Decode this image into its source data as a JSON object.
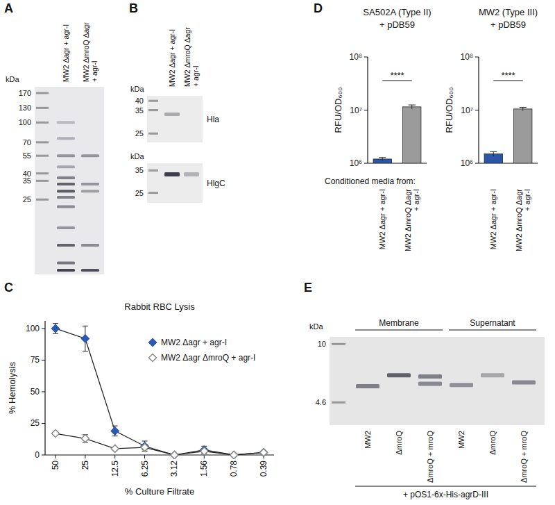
{
  "panel_labels": [
    "A",
    "B",
    "C",
    "D",
    "E"
  ],
  "gels": [
    {
      "unit": "kDa",
      "markers": [
        170,
        130,
        100,
        70,
        55,
        40,
        35,
        25
      ],
      "ylim": [
        6.5,
        190
      ],
      "lane_labels": [
        "MW2 Δagr + agr-I",
        "MW2 ΔmroQ Δagr + agr-I"
      ],
      "lanes": [
        [
          {
            "kda": 100,
            "intensity": 0.25
          },
          {
            "kda": 75,
            "intensity": 0.3
          },
          {
            "kda": 55,
            "intensity": 0.45
          },
          {
            "kda": 45,
            "intensity": 0.35
          },
          {
            "kda": 37,
            "intensity": 0.55
          },
          {
            "kda": 33,
            "intensity": 0.7
          },
          {
            "kda": 29,
            "intensity": 0.75
          },
          {
            "kda": 26,
            "intensity": 0.55
          },
          {
            "kda": 22,
            "intensity": 0.5
          },
          {
            "kda": 15,
            "intensity": 0.45
          },
          {
            "kda": 11,
            "intensity": 0.7
          },
          {
            "kda": 8,
            "intensity": 0.6
          },
          {
            "kda": 7,
            "intensity": 0.85
          }
        ],
        [
          {
            "kda": 55,
            "intensity": 0.45
          },
          {
            "kda": 33,
            "intensity": 0.45
          },
          {
            "kda": 29,
            "intensity": 0.4
          },
          {
            "kda": 11,
            "intensity": 0.5
          },
          {
            "kda": 7,
            "intensity": 0.8
          }
        ]
      ]
    },
    {
      "unit": "kDa",
      "label": "Hla",
      "markers": [
        40,
        35,
        25
      ],
      "ylim": [
        22,
        43
      ],
      "lane_labels": [
        "MW2 Δagr + agr-I",
        "MW2 ΔmroQ Δagr + agr-I"
      ],
      "lanes": [
        [
          {
            "kda": 33,
            "intensity": 0.35
          }
        ],
        []
      ]
    },
    {
      "unit": "kDa",
      "label": "HlgC",
      "markers": [
        35,
        25
      ],
      "ylim": [
        21.5,
        39
      ],
      "lanes": [
        [
          {
            "kda": 33,
            "intensity": 0.9
          }
        ],
        [
          {
            "kda": 33,
            "intensity": 0.3
          }
        ]
      ]
    },
    {
      "unit": "kDa",
      "markers": [
        10,
        4.6
      ],
      "ylim": [
        3.4,
        11
      ],
      "group_labels": [
        "Membrane",
        "Supernatant"
      ],
      "lane_labels": [
        "MW2",
        "ΔmroQ",
        "ΔmroQ + mroQ",
        "MW2",
        "ΔmroQ",
        "ΔmroQ + mroQ"
      ],
      "footer": "+ pOS1-6x-His-agrD-III",
      "lanes": [
        [
          {
            "kda": 5.7,
            "intensity": 0.55
          }
        ],
        [
          {
            "kda": 6.6,
            "intensity": 0.7
          }
        ],
        [
          {
            "kda": 6.5,
            "intensity": 0.55
          },
          {
            "kda": 5.9,
            "intensity": 0.5
          }
        ],
        [
          {
            "kda": 5.8,
            "intensity": 0.45
          }
        ],
        [
          {
            "kda": 6.6,
            "intensity": 0.35
          }
        ],
        [
          {
            "kda": 6.0,
            "intensity": 0.5
          }
        ]
      ]
    }
  ],
  "chart_data": [
    {
      "type": "line",
      "title": "Rabbit RBC Lysis",
      "xlabel": "% Culture Filtrate",
      "ylabel": "% Hemolysis",
      "categories": [
        "50",
        "25",
        "12.5",
        "6.25",
        "3.12",
        "1.56",
        "0.78",
        "0.39"
      ],
      "ylim": [
        0,
        106
      ],
      "yticks": [
        0,
        25,
        50,
        75,
        100
      ],
      "grid": false,
      "legend": "upper right",
      "series": [
        {
          "name": "MW2 Δagr + agr-I",
          "color": "#2b58b0",
          "marker": "filled-diamond",
          "values": [
            100,
            92,
            19,
            7,
            0,
            4,
            0,
            2
          ],
          "errors": [
            4,
            10,
            4,
            4,
            1,
            3,
            0,
            1
          ]
        },
        {
          "name": "MW2 Δagr ΔmroQ + agr-I",
          "color": "#8a8a8a",
          "marker": "open-diamond",
          "values": [
            17,
            13,
            5,
            6,
            0,
            3,
            0,
            2
          ],
          "errors": [
            1,
            3,
            1,
            2,
            0,
            1,
            0,
            1
          ]
        }
      ]
    },
    {
      "type": "bar",
      "log": "y",
      "title": "SA502A (Type II)",
      "subtitle": "+ pDB59",
      "ylabel": "RFU/OD₆₀₀",
      "xlabel": "Conditioned media from:",
      "categories": [
        "MW2 Δagr + agr-I",
        "MW2 ΔmroQ Δagr + agr-I"
      ],
      "values": [
        1200000,
        11500000
      ],
      "errors": [
        80000,
        1000000
      ],
      "colors": [
        "#2b55a6",
        "#9b9b9b"
      ],
      "ylim": [
        1000000,
        100000000
      ],
      "yticks": [
        {
          "value": 1000000,
          "label": "10⁶"
        },
        {
          "value": 10000000,
          "label": "10⁷"
        },
        {
          "value": 100000000,
          "label": "10⁸"
        }
      ],
      "annotations": [
        {
          "text": "****"
        }
      ],
      "grid": false
    },
    {
      "type": "bar",
      "log": "y",
      "title": "MW2 (Type III)",
      "subtitle": "+ pDB59",
      "ylabel": "RFU/OD₆₀₀",
      "categories": [
        "MW2 Δagr + agr-I",
        "MW2 ΔmroQ Δagr + agr-I"
      ],
      "values": [
        1500000,
        10500000
      ],
      "errors": [
        150000,
        800000
      ],
      "colors": [
        "#2b55a6",
        "#9b9b9b"
      ],
      "ylim": [
        1000000,
        100000000
      ],
      "yticks": [
        {
          "value": 1000000,
          "label": "10⁶"
        },
        {
          "value": 10000000,
          "label": "10⁷"
        },
        {
          "value": 100000000,
          "label": "10⁸"
        }
      ],
      "annotations": [
        {
          "text": "****"
        }
      ],
      "grid": false
    }
  ]
}
